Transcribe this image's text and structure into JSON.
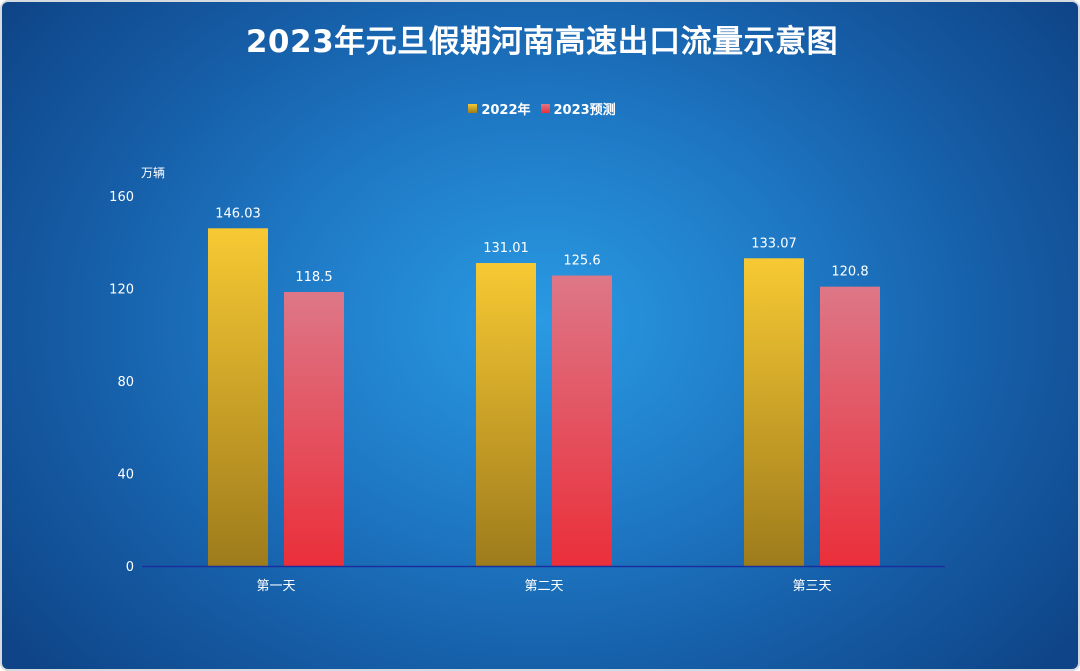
{
  "chart_data": {
    "type": "bar",
    "title": "2023年元旦假期河南高速出口流量示意图",
    "ylabel": "万辆",
    "xlabel": "",
    "categories": [
      "第一天",
      "第二天",
      "第三天"
    ],
    "series": [
      {
        "name": "2022年",
        "values": [
          146.03,
          131.01,
          133.07
        ],
        "labels": [
          "146.03",
          "131.01",
          "133.07"
        ],
        "color": "#f7c933",
        "color_bottom": "#9e7b1c"
      },
      {
        "name": "2023预测",
        "values": [
          118.5,
          125.6,
          120.8
        ],
        "labels": [
          "118.5",
          "125.6",
          "120.8"
        ],
        "color": "#dd7787",
        "color_bottom": "#ea2f3a"
      }
    ],
    "ylim": [
      0,
      160
    ],
    "yticks": [
      0,
      40,
      80,
      120,
      160
    ],
    "ytick_labels": [
      "0",
      "40",
      "80",
      "120",
      "160"
    ],
    "grid": false,
    "legend_position": "top-center",
    "background_color": "#1f7ac6",
    "axis_line_color": "#1a2f9e"
  }
}
